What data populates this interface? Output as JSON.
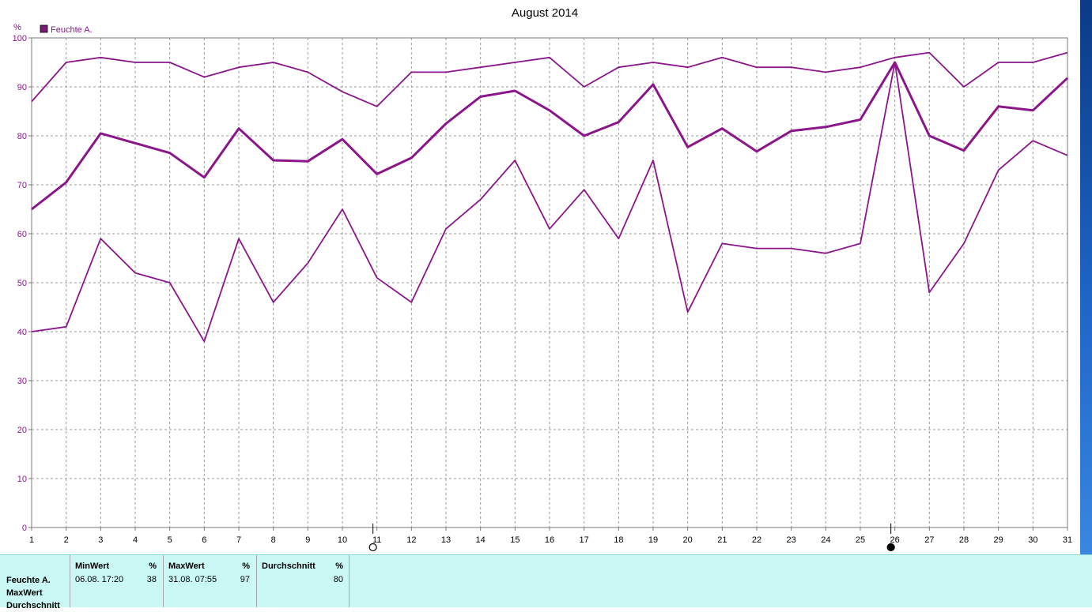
{
  "chart_data": {
    "type": "line",
    "title": "August 2014",
    "ylabel": "%",
    "legend": {
      "label": "Feuchte A.",
      "placement": "top-left",
      "color": "#7b1a72"
    },
    "line_color": "#8a168a",
    "ylim": [
      0,
      100
    ],
    "yticks": [
      0,
      10,
      20,
      30,
      40,
      50,
      60,
      70,
      80,
      90,
      100
    ],
    "grid": true,
    "x": [
      1,
      2,
      3,
      4,
      5,
      6,
      7,
      8,
      9,
      10,
      11,
      12,
      13,
      14,
      15,
      16,
      17,
      18,
      19,
      20,
      21,
      22,
      23,
      24,
      25,
      26,
      27,
      28,
      29,
      30,
      31
    ],
    "series": [
      {
        "key": "max",
        "thick": false,
        "values": [
          87,
          95,
          96,
          95,
          95,
          92,
          94,
          95,
          93,
          89,
          86,
          93,
          93,
          94,
          95,
          96,
          90,
          94,
          95,
          94,
          96,
          94,
          94,
          93,
          94,
          96,
          97,
          90,
          95,
          95,
          97
        ]
      },
      {
        "key": "avg",
        "thick": true,
        "values": [
          65,
          70.5,
          80.5,
          78.5,
          76.5,
          71.5,
          81.5,
          75,
          74.8,
          79.3,
          72.2,
          75.5,
          82.5,
          88,
          89.2,
          85.2,
          80,
          82.8,
          90.5,
          77.7,
          81.5,
          76.8,
          81,
          81.8,
          83.3,
          95,
          80,
          77,
          86,
          85.2,
          91.8
        ]
      },
      {
        "key": "min",
        "thick": false,
        "values": [
          40,
          41,
          59,
          52,
          50,
          38,
          59,
          46,
          54,
          65,
          51,
          46,
          61,
          67,
          75,
          61,
          69,
          59,
          75,
          44,
          58,
          57,
          57,
          56,
          58,
          95,
          48,
          58,
          73,
          79,
          76
        ]
      }
    ],
    "markers": [
      {
        "day": 11,
        "symbol": "open-circle"
      },
      {
        "day": 26,
        "symbol": "filled-circle"
      }
    ]
  },
  "stats": {
    "row_labels": [
      "Feuchte A.",
      "MaxWert",
      "Durchschnitt"
    ],
    "columns": [
      {
        "header": "MinWert",
        "unit": "%",
        "value": "06.08.  17:20",
        "number": "38"
      },
      {
        "header": "MaxWert",
        "unit": "%",
        "value": "31.08.  07:55",
        "number": "97"
      },
      {
        "header": "Durchschnitt",
        "unit": "%",
        "value": "",
        "number": "80"
      }
    ]
  }
}
